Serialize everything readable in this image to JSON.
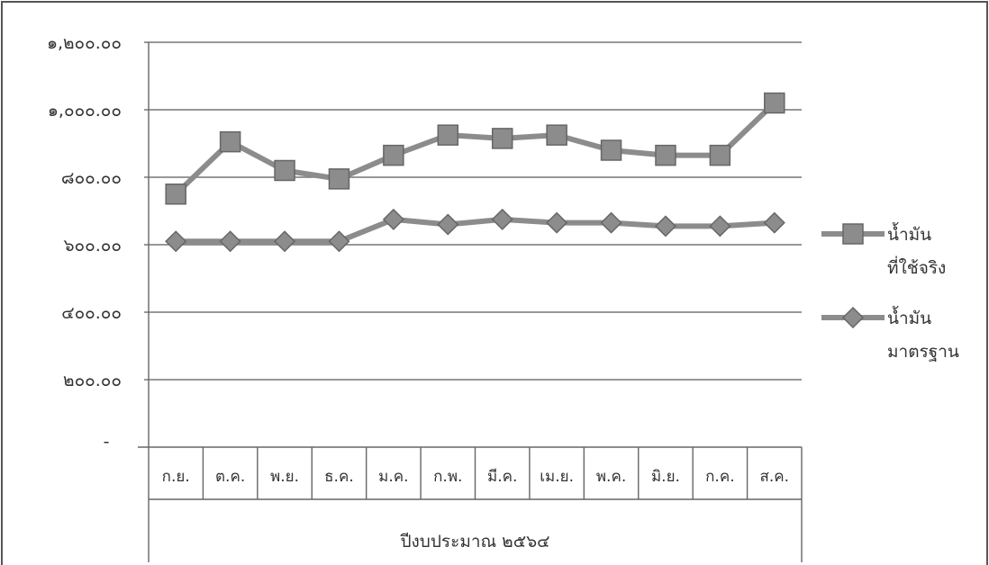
{
  "chart_data": {
    "type": "line",
    "title": "",
    "xlabel": "ปีงบประมาณ ๒๕๖๔",
    "ylabel": "",
    "ylim": [
      0,
      1200
    ],
    "yticks": [
      {
        "value": 0,
        "label": "-"
      },
      {
        "value": 200,
        "label": "๒๐๐.๐๐"
      },
      {
        "value": 400,
        "label": "๔๐๐.๐๐"
      },
      {
        "value": 600,
        "label": "๖๐๐.๐๐"
      },
      {
        "value": 800,
        "label": "๘๐๐.๐๐"
      },
      {
        "value": 1000,
        "label": "๑,๐๐๐.๐๐"
      },
      {
        "value": 1200,
        "label": "๑,๒๐๐.๐๐"
      }
    ],
    "categories": [
      "ก.ย.",
      "ต.ค.",
      "พ.ย.",
      "ธ.ค.",
      "ม.ค.",
      "ก.พ.",
      "มี.ค.",
      "เม.ย.",
      "พ.ค.",
      "มิ.ย.",
      "ก.ค.",
      "ส.ค."
    ],
    "grid": true,
    "legend_position": "right",
    "series": [
      {
        "name": "น้ำมันที่ใช้จริง",
        "legend_lines": [
          "น้ำมัน",
          "ที่ใช้จริง"
        ],
        "marker": "square",
        "color": "#8c8c8c",
        "values": [
          750,
          905,
          820,
          795,
          865,
          925,
          915,
          925,
          880,
          865,
          865,
          1020
        ]
      },
      {
        "name": "น้ำมันมาตรฐาน",
        "legend_lines": [
          "น้ำมัน",
          "มาตรฐาน"
        ],
        "marker": "diamond",
        "color": "#8c8c8c",
        "values": [
          610,
          610,
          610,
          610,
          675,
          660,
          675,
          665,
          665,
          655,
          655,
          665
        ]
      }
    ]
  }
}
